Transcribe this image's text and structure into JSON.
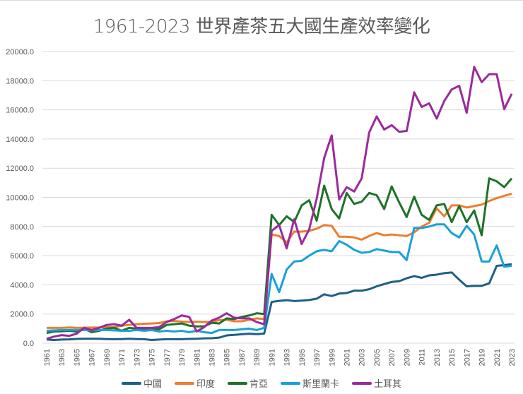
{
  "chart_data": {
    "type": "line",
    "title": "1961-2023 世界產茶五大國生產效率變化",
    "xlabel": "",
    "ylabel": "",
    "ylim": [
      0,
      20000
    ],
    "yticks": [
      "0.0",
      "2000.0",
      "4000.0",
      "6000.0",
      "8000.0",
      "10000.0",
      "12000.0",
      "14000.0",
      "16000.0",
      "18000.0",
      "20000.0"
    ],
    "x": [
      1961,
      1962,
      1963,
      1964,
      1965,
      1966,
      1967,
      1968,
      1969,
      1970,
      1971,
      1972,
      1973,
      1974,
      1975,
      1976,
      1977,
      1978,
      1979,
      1980,
      1981,
      1982,
      1983,
      1984,
      1985,
      1986,
      1987,
      1988,
      1989,
      1990,
      1991,
      1992,
      1993,
      1994,
      1995,
      1996,
      1997,
      1998,
      1999,
      2000,
      2001,
      2002,
      2003,
      2004,
      2005,
      2006,
      2007,
      2008,
      2009,
      2010,
      2011,
      2012,
      2013,
      2014,
      2015,
      2016,
      2017,
      2018,
      2019,
      2020,
      2021,
      2022,
      2023
    ],
    "xtick_labels": [
      "1961",
      "1963",
      "1965",
      "1967",
      "1969",
      "1971",
      "1973",
      "1975",
      "1977",
      "1979",
      "1981",
      "1983",
      "1985",
      "1987",
      "1989",
      "1991",
      "1993",
      "1995",
      "1997",
      "1999",
      "2001",
      "2003",
      "2005",
      "2007",
      "2009",
      "2011",
      "2013",
      "2015",
      "2017",
      "2019",
      "2021",
      "2023"
    ],
    "grid": true,
    "legend": "bottom",
    "series": [
      {
        "name": "中國",
        "color": "#1f5f85",
        "values": [
          250,
          220,
          250,
          260,
          290,
          300,
          300,
          300,
          280,
          270,
          280,
          300,
          280,
          270,
          220,
          250,
          270,
          270,
          270,
          290,
          300,
          330,
          340,
          380,
          530,
          570,
          610,
          650,
          620,
          660,
          2830,
          2900,
          2950,
          2890,
          2920,
          2960,
          3050,
          3350,
          3230,
          3400,
          3440,
          3600,
          3600,
          3700,
          3900,
          4050,
          4200,
          4250,
          4450,
          4600,
          4480,
          4650,
          4700,
          4800,
          4850,
          4350,
          3900,
          3930,
          3930,
          4100,
          5300,
          5350,
          5420
        ]
      },
      {
        "name": "印度",
        "color": "#ed7d31",
        "values": [
          1050,
          1050,
          1050,
          1080,
          1050,
          1060,
          1070,
          1080,
          1100,
          1100,
          1200,
          1250,
          1300,
          1330,
          1350,
          1380,
          1500,
          1520,
          1480,
          1450,
          1470,
          1450,
          1450,
          1580,
          1600,
          1500,
          1500,
          1600,
          1700,
          1650,
          7450,
          7350,
          6900,
          7650,
          7650,
          7700,
          7850,
          8100,
          8050,
          7300,
          7300,
          7250,
          7100,
          7350,
          7550,
          7400,
          7450,
          7400,
          7350,
          7600,
          8000,
          8250,
          9250,
          8700,
          9450,
          9450,
          9300,
          9400,
          9500,
          9750,
          9950,
          10100,
          10250
        ]
      },
      {
        "name": "肯亞",
        "color": "#1e7228",
        "values": [
          700,
          800,
          820,
          850,
          800,
          1000,
          750,
          850,
          1000,
          1050,
          850,
          1050,
          1000,
          1000,
          1000,
          950,
          1250,
          1300,
          1350,
          1200,
          1150,
          1150,
          1400,
          1350,
          1700,
          1650,
          1800,
          1900,
          2050,
          2000,
          8800,
          8100,
          8700,
          8300,
          9450,
          9800,
          8400,
          10800,
          9200,
          8550,
          10300,
          9550,
          9700,
          10300,
          10150,
          9200,
          10750,
          9650,
          8650,
          10050,
          8800,
          8450,
          9450,
          9550,
          8300,
          9400,
          8300,
          9100,
          7400,
          11300,
          11100,
          10700,
          11300
        ]
      },
      {
        "name": "斯里蘭卡",
        "color": "#1aa0d8",
        "values": [
          850,
          880,
          900,
          900,
          900,
          900,
          880,
          900,
          900,
          880,
          850,
          850,
          900,
          850,
          900,
          800,
          850,
          800,
          850,
          750,
          850,
          750,
          700,
          900,
          900,
          900,
          950,
          1000,
          900,
          1050,
          4750,
          3500,
          5050,
          5600,
          5650,
          6000,
          6300,
          6400,
          6300,
          7000,
          6750,
          6400,
          6200,
          6250,
          6450,
          6350,
          6250,
          6250,
          5700,
          7900,
          7900,
          8000,
          8150,
          8150,
          7550,
          7250,
          8050,
          7450,
          5600,
          5600,
          6700,
          5250,
          5300
        ]
      },
      {
        "name": "土耳其",
        "color": "#9b2a9b",
        "values": [
          300,
          450,
          550,
          500,
          650,
          1050,
          900,
          1050,
          1250,
          1300,
          1200,
          1600,
          1050,
          1050,
          1050,
          1100,
          1450,
          1650,
          1900,
          1800,
          800,
          1100,
          1550,
          1750,
          2050,
          1750,
          1700,
          1700,
          1450,
          1300,
          7700,
          8100,
          6500,
          8500,
          6800,
          7800,
          9900,
          12700,
          14250,
          9850,
          10700,
          10400,
          11300,
          14450,
          15550,
          14650,
          14950,
          14500,
          14550,
          17200,
          16200,
          16450,
          15400,
          16600,
          17400,
          17650,
          15800,
          18950,
          17900,
          18450,
          18450,
          16050,
          17100
        ]
      }
    ]
  }
}
